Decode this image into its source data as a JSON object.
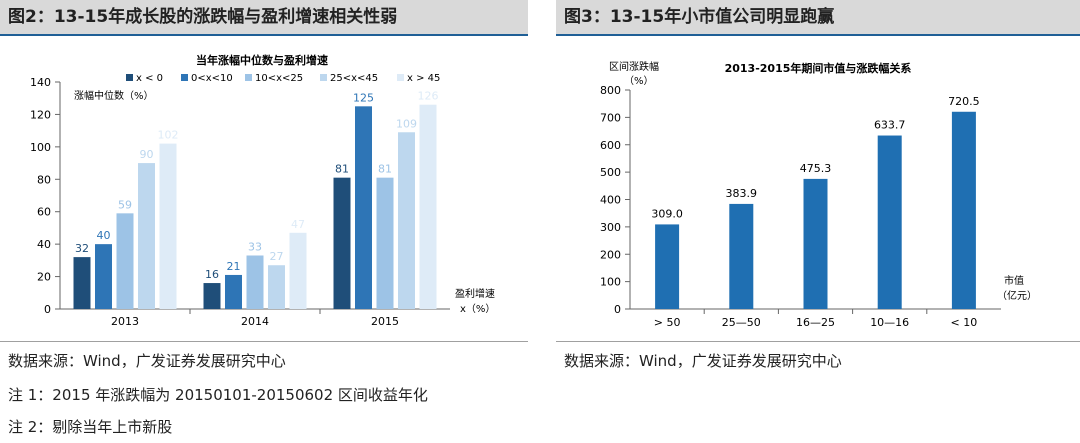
{
  "left": {
    "fig_title": "图2：13-15年成长股的涨跌幅与盈利增速相关性弱",
    "source": "数据来源：Wind，广发证券发展研究中心",
    "notes": [
      "注 1：2015 年涨跌幅为 20150101-20150602 区间收益年化",
      "注 2：剔除当年上市新股"
    ]
  },
  "right": {
    "fig_title": "图3：13-15年小市值公司明显跑赢",
    "source": "数据来源：Wind，广发证券发展研究中心"
  },
  "chart_data": [
    {
      "type": "bar",
      "title": "当年涨幅中位数与盈利增速",
      "ylabel": "涨幅中位数（%）",
      "xlabel": "盈利增速x（%）",
      "ylim": [
        0,
        140
      ],
      "yticks": [
        0,
        20,
        40,
        60,
        80,
        100,
        120,
        140
      ],
      "categories": [
        "2013",
        "2014",
        "2015"
      ],
      "legend_position": "top",
      "series": [
        {
          "name": "x < 0",
          "color": "#1f4e79",
          "values": [
            32,
            16,
            81
          ]
        },
        {
          "name": "0<x<10",
          "color": "#2e75b6",
          "values": [
            40,
            21,
            125
          ]
        },
        {
          "name": "10<x<25",
          "color": "#9dc3e6",
          "values": [
            59,
            33,
            81
          ]
        },
        {
          "name": "25<x<45",
          "color": "#bdd7ee",
          "values": [
            90,
            27,
            109
          ]
        },
        {
          "name": "x > 45",
          "color": "#deebf7",
          "values": [
            102,
            47,
            126
          ]
        }
      ]
    },
    {
      "type": "bar",
      "title": "2013-2015年期间市值与涨跌幅关系",
      "ylabel": "区间涨跌幅（%）",
      "xlabel": "市值（亿元）",
      "ylim": [
        0,
        800
      ],
      "yticks": [
        0,
        100,
        200,
        300,
        400,
        500,
        600,
        700,
        800
      ],
      "categories": [
        "> 50",
        "25—50",
        "16—25",
        "10—16",
        "< 10"
      ],
      "values": [
        309.0,
        383.9,
        475.3,
        633.7,
        720.5
      ],
      "labels": [
        "309.0",
        "383.9",
        "475.3",
        "633.7",
        "720.5"
      ],
      "color": "#1f6fb2"
    }
  ]
}
